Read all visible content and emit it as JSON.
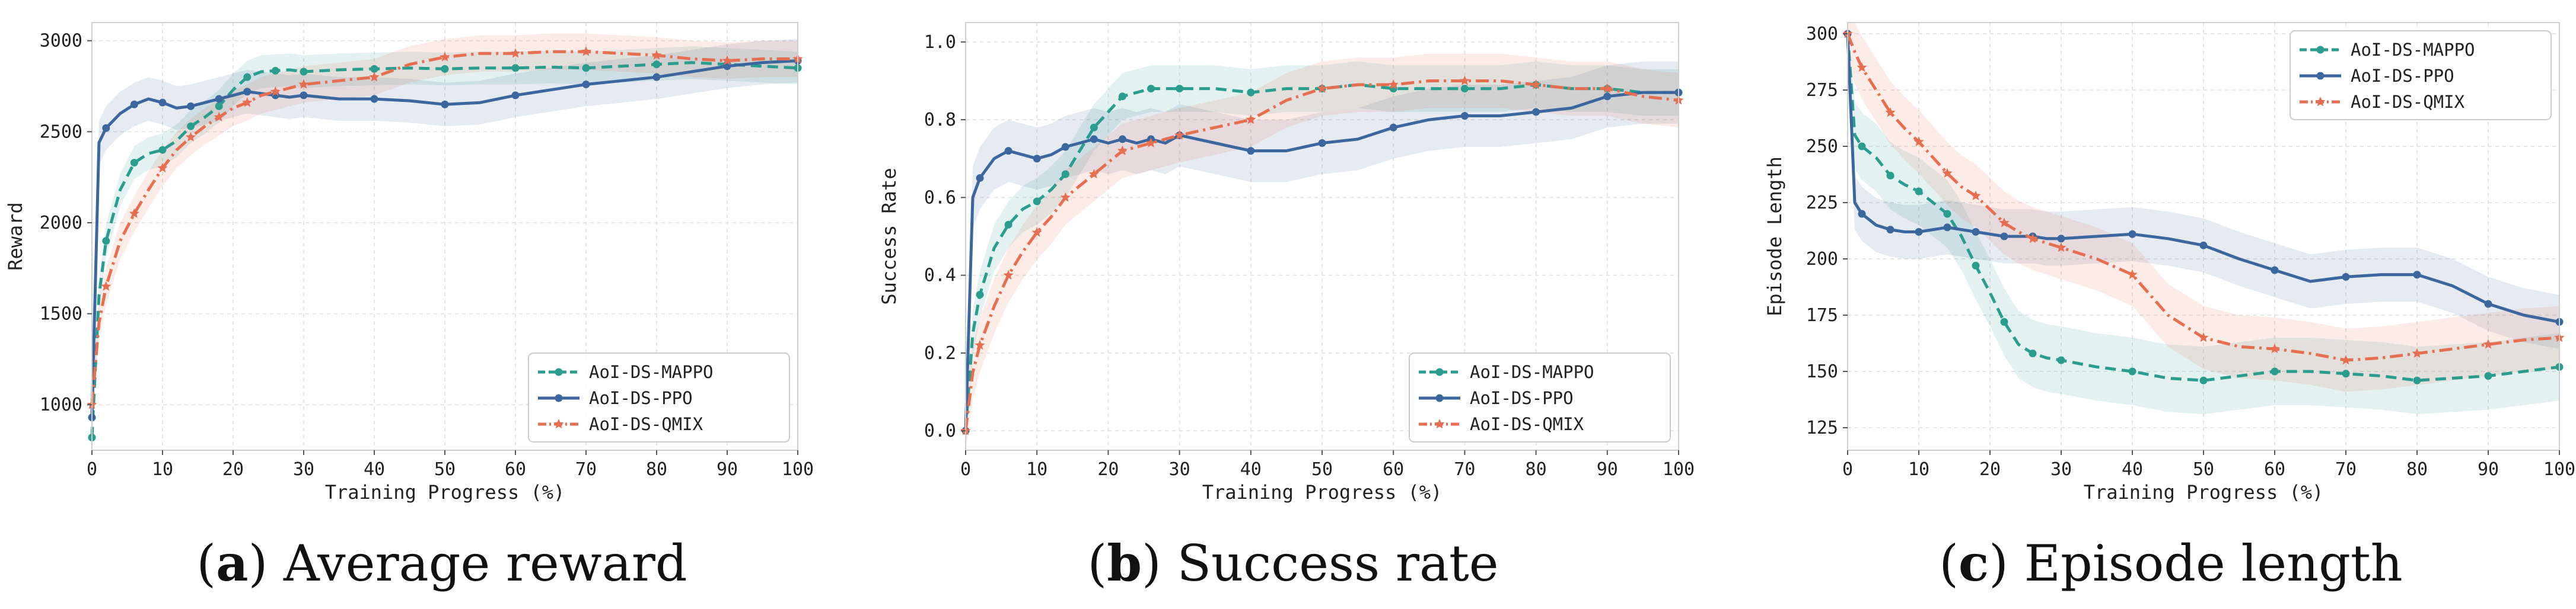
{
  "colors": {
    "mappo": "#2a9d8f",
    "ppo": "#3b679e",
    "qmix": "#e76f51"
  },
  "legend_labels": [
    "AoI-DS-MAPPO",
    "AoI-DS-PPO",
    "AoI-DS-QMIX"
  ],
  "chart_data": [
    {
      "type": "line",
      "caption_letter": "a",
      "caption_text": "Average reward",
      "title": "",
      "xlabel": "Training Progress (%)",
      "ylabel": "Reward",
      "xlim": [
        0,
        100
      ],
      "ylim": [
        750,
        3100
      ],
      "xticks": [
        0,
        10,
        20,
        30,
        40,
        50,
        60,
        70,
        80,
        90,
        100
      ],
      "yticks": [
        1000,
        1500,
        2000,
        2500,
        3000
      ],
      "grid": true,
      "legend_position": "lower-right",
      "series": [
        {
          "name": "AoI-DS-MAPPO",
          "style": "dashed-circle",
          "band": 90,
          "x": [
            0,
            1,
            2,
            4,
            6,
            8,
            10,
            12,
            14,
            16,
            18,
            20,
            22,
            24,
            26,
            28,
            30,
            35,
            40,
            45,
            50,
            55,
            60,
            65,
            70,
            75,
            80,
            85,
            90,
            95,
            100
          ],
          "y": [
            820,
            1600,
            1900,
            2180,
            2330,
            2380,
            2400,
            2450,
            2530,
            2580,
            2640,
            2730,
            2800,
            2830,
            2835,
            2840,
            2830,
            2840,
            2845,
            2850,
            2845,
            2850,
            2850,
            2855,
            2850,
            2860,
            2870,
            2880,
            2870,
            2860,
            2850
          ]
        },
        {
          "name": "AoI-DS-PPO",
          "style": "solid-circle",
          "band": 120,
          "x": [
            0,
            1,
            2,
            4,
            6,
            8,
            10,
            12,
            14,
            16,
            18,
            20,
            22,
            24,
            26,
            28,
            30,
            35,
            40,
            45,
            50,
            55,
            60,
            65,
            70,
            75,
            80,
            85,
            90,
            95,
            100
          ],
          "y": [
            930,
            2440,
            2520,
            2600,
            2650,
            2680,
            2660,
            2630,
            2640,
            2660,
            2680,
            2700,
            2720,
            2710,
            2700,
            2690,
            2700,
            2680,
            2680,
            2670,
            2650,
            2660,
            2700,
            2730,
            2760,
            2780,
            2800,
            2830,
            2860,
            2880,
            2890
          ]
        },
        {
          "name": "AoI-DS-QMIX",
          "style": "dashdot-star",
          "band": 100,
          "x": [
            0,
            1,
            2,
            4,
            6,
            8,
            10,
            12,
            14,
            16,
            18,
            20,
            22,
            24,
            26,
            28,
            30,
            35,
            40,
            45,
            50,
            55,
            60,
            65,
            70,
            75,
            80,
            85,
            90,
            95,
            100
          ],
          "y": [
            1000,
            1450,
            1650,
            1900,
            2050,
            2180,
            2300,
            2400,
            2470,
            2530,
            2580,
            2630,
            2660,
            2700,
            2720,
            2740,
            2760,
            2780,
            2800,
            2870,
            2910,
            2930,
            2930,
            2940,
            2940,
            2930,
            2920,
            2900,
            2890,
            2900,
            2900
          ]
        }
      ]
    },
    {
      "type": "line",
      "caption_letter": "b",
      "caption_text": "Success rate",
      "title": "",
      "xlabel": "Training Progress (%)",
      "ylabel": "Success Rate",
      "xlim": [
        0,
        100
      ],
      "ylim": [
        -0.05,
        1.05
      ],
      "xticks": [
        0,
        10,
        20,
        30,
        40,
        50,
        60,
        70,
        80,
        90,
        100
      ],
      "yticks": [
        0.0,
        0.2,
        0.4,
        0.6,
        0.8,
        1.0
      ],
      "ytick_labels": [
        "0.0",
        "0.2",
        "0.4",
        "0.6",
        "0.8",
        "1.0"
      ],
      "grid": true,
      "legend_position": "lower-right",
      "series": [
        {
          "name": "AoI-DS-MAPPO",
          "style": "dashed-circle",
          "band": 0.06,
          "x": [
            0,
            1,
            2,
            4,
            6,
            8,
            10,
            12,
            14,
            16,
            18,
            20,
            22,
            24,
            26,
            28,
            30,
            35,
            40,
            45,
            50,
            55,
            60,
            65,
            70,
            75,
            80,
            85,
            90,
            95,
            100
          ],
          "y": [
            0.0,
            0.25,
            0.35,
            0.47,
            0.53,
            0.57,
            0.59,
            0.62,
            0.66,
            0.72,
            0.78,
            0.82,
            0.86,
            0.87,
            0.88,
            0.88,
            0.88,
            0.88,
            0.87,
            0.88,
            0.88,
            0.89,
            0.88,
            0.88,
            0.88,
            0.88,
            0.89,
            0.88,
            0.88,
            0.87,
            0.87
          ]
        },
        {
          "name": "AoI-DS-PPO",
          "style": "solid-circle",
          "band": 0.08,
          "x": [
            0,
            1,
            2,
            4,
            6,
            8,
            10,
            12,
            14,
            16,
            18,
            20,
            22,
            24,
            26,
            28,
            30,
            35,
            40,
            45,
            50,
            55,
            60,
            65,
            70,
            75,
            80,
            85,
            90,
            95,
            100
          ],
          "y": [
            0.0,
            0.6,
            0.65,
            0.7,
            0.72,
            0.71,
            0.7,
            0.71,
            0.73,
            0.74,
            0.75,
            0.74,
            0.75,
            0.74,
            0.75,
            0.74,
            0.76,
            0.74,
            0.72,
            0.72,
            0.74,
            0.75,
            0.78,
            0.8,
            0.81,
            0.81,
            0.82,
            0.83,
            0.86,
            0.87,
            0.87
          ]
        },
        {
          "name": "AoI-DS-QMIX",
          "style": "dashdot-star",
          "band": 0.07,
          "x": [
            0,
            1,
            2,
            4,
            6,
            8,
            10,
            12,
            14,
            16,
            18,
            20,
            22,
            24,
            26,
            28,
            30,
            35,
            40,
            45,
            50,
            55,
            60,
            65,
            70,
            75,
            80,
            85,
            90,
            95,
            100
          ],
          "y": [
            0.0,
            0.15,
            0.22,
            0.32,
            0.4,
            0.46,
            0.51,
            0.55,
            0.6,
            0.63,
            0.66,
            0.69,
            0.72,
            0.73,
            0.74,
            0.75,
            0.76,
            0.78,
            0.8,
            0.85,
            0.88,
            0.89,
            0.89,
            0.9,
            0.9,
            0.9,
            0.89,
            0.88,
            0.88,
            0.86,
            0.85
          ]
        }
      ]
    },
    {
      "type": "line",
      "caption_letter": "c",
      "caption_text": "Episode length",
      "title": "",
      "xlabel": "Training Progress (%)",
      "ylabel": "Episode Length",
      "xlim": [
        0,
        100
      ],
      "ylim": [
        115,
        305
      ],
      "xticks": [
        0,
        10,
        20,
        30,
        40,
        50,
        60,
        70,
        80,
        90,
        100
      ],
      "yticks": [
        125,
        150,
        175,
        200,
        225,
        250,
        275,
        300
      ],
      "grid": true,
      "legend_position": "upper-right",
      "series": [
        {
          "name": "AoI-DS-MAPPO",
          "style": "dashed-circle",
          "band": 15,
          "x": [
            0,
            1,
            2,
            4,
            6,
            8,
            10,
            12,
            14,
            16,
            18,
            20,
            22,
            24,
            26,
            28,
            30,
            35,
            40,
            45,
            50,
            55,
            60,
            65,
            70,
            75,
            80,
            85,
            90,
            95,
            100
          ],
          "y": [
            300,
            255,
            250,
            245,
            237,
            233,
            230,
            225,
            220,
            210,
            197,
            185,
            172,
            162,
            158,
            156,
            155,
            152,
            150,
            147,
            146,
            148,
            150,
            150,
            149,
            148,
            146,
            147,
            148,
            150,
            152
          ]
        },
        {
          "name": "AoI-DS-PPO",
          "style": "solid-circle",
          "band": 12,
          "x": [
            0,
            1,
            2,
            4,
            6,
            8,
            10,
            12,
            14,
            16,
            18,
            20,
            22,
            24,
            26,
            28,
            30,
            35,
            40,
            45,
            50,
            55,
            60,
            65,
            70,
            75,
            80,
            85,
            90,
            95,
            100
          ],
          "y": [
            300,
            225,
            220,
            215,
            213,
            212,
            212,
            213,
            214,
            213,
            212,
            211,
            210,
            210,
            210,
            209,
            209,
            210,
            211,
            209,
            206,
            200,
            195,
            190,
            192,
            193,
            193,
            188,
            180,
            175,
            172
          ]
        },
        {
          "name": "AoI-DS-QMIX",
          "style": "dashdot-star",
          "band": 14,
          "x": [
            0,
            1,
            2,
            4,
            6,
            8,
            10,
            12,
            14,
            16,
            18,
            20,
            22,
            24,
            26,
            28,
            30,
            35,
            40,
            45,
            50,
            55,
            60,
            65,
            70,
            75,
            80,
            85,
            90,
            95,
            100
          ],
          "y": [
            300,
            292,
            285,
            275,
            265,
            258,
            252,
            245,
            238,
            232,
            228,
            222,
            216,
            212,
            209,
            207,
            205,
            200,
            193,
            175,
            165,
            161,
            160,
            158,
            155,
            156,
            158,
            160,
            162,
            164,
            165
          ]
        }
      ]
    }
  ]
}
